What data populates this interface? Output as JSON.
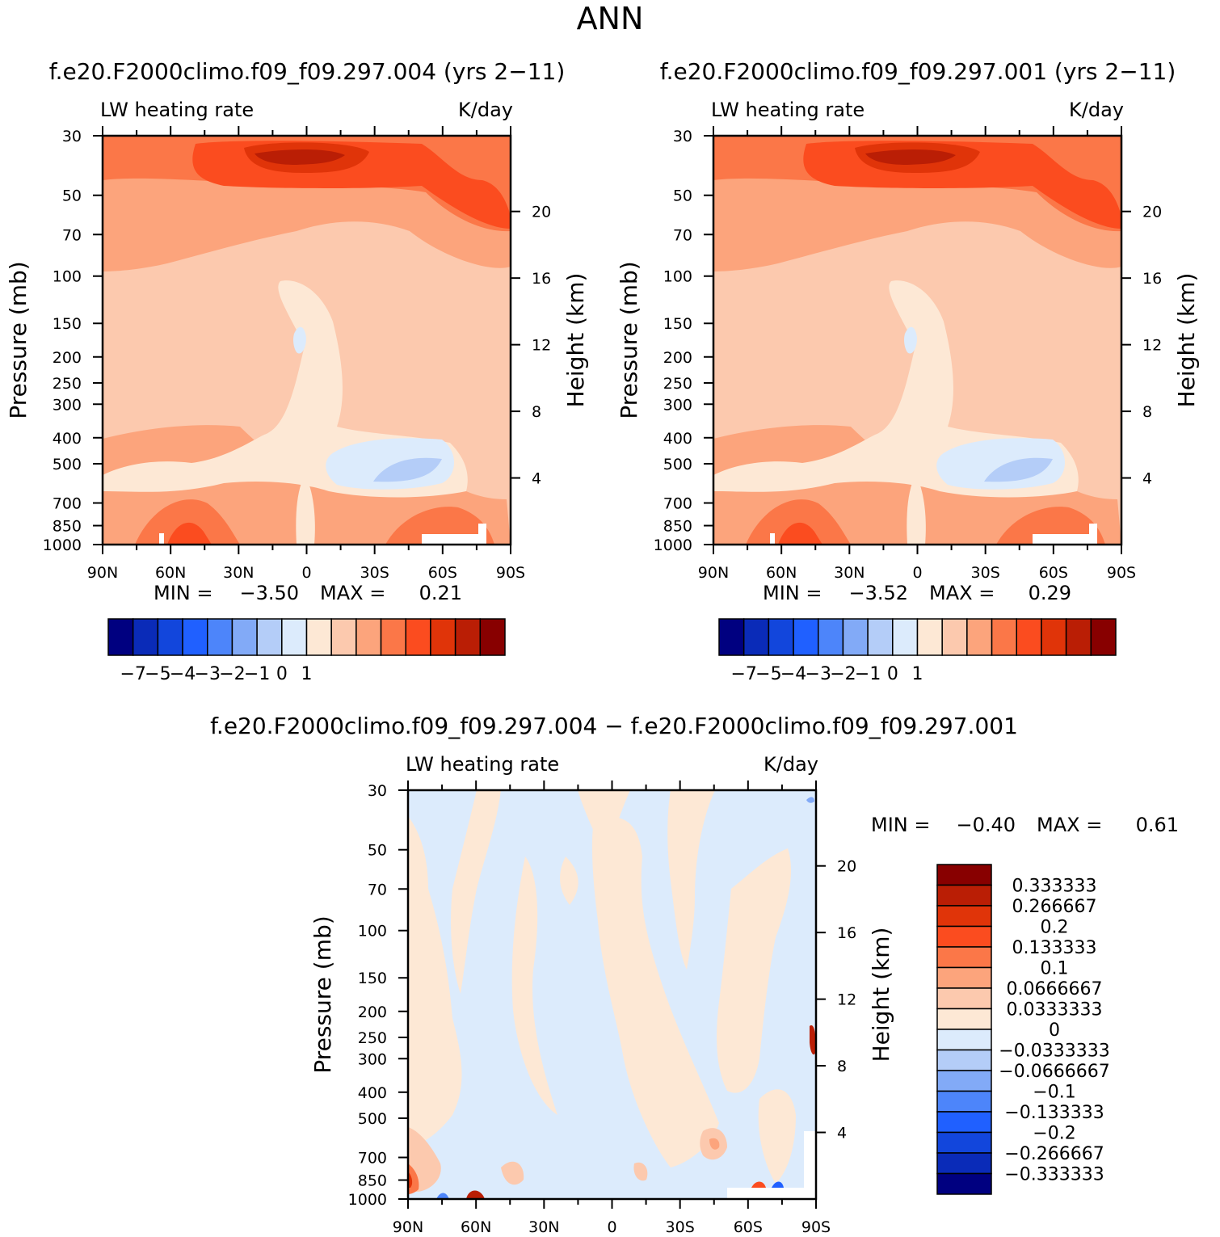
{
  "figure": {
    "title": "ANN",
    "diff_title": "f.e20.F2000climo.f09_f09.297.004 − f.e20.F2000climo.f09_f09.297.001"
  },
  "colors": {
    "abs_palette": [
      "#000080",
      "#0a2bb8",
      "#1246dc",
      "#2060ff",
      "#4d85fa",
      "#82aaf7",
      "#b4cdf8",
      "#dcebfc",
      "#fde8d5",
      "#fcc9ae",
      "#fca47c",
      "#fb7748",
      "#fb4c1f",
      "#e03409",
      "#ba1e05",
      "#880000"
    ],
    "diff_palette": [
      "#000080",
      "#0a2bb8",
      "#1246dc",
      "#2060ff",
      "#4d85fa",
      "#82aaf7",
      "#b4cdf8",
      "#dcebfc",
      "#fde8d5",
      "#fcc9ae",
      "#fca47c",
      "#fb7748",
      "#fb4c1f",
      "#e03409",
      "#ba1e05",
      "#880000"
    ]
  },
  "chart_data": [
    {
      "type": "contour",
      "title": "f.e20.F2000climo.f09_f09.297.004 (yrs 2−11)",
      "left_label": "LW heating rate",
      "right_label": "K/day",
      "xlabel": "",
      "ylabel": "Pressure (mb)",
      "y2label": "Height (km)",
      "x_ticks": [
        "90N",
        "60N",
        "30N",
        "0",
        "30S",
        "60S",
        "90S"
      ],
      "y_ticks": [
        "30",
        "50",
        "70",
        "100",
        "150",
        "200",
        "250",
        "300",
        "400",
        "500",
        "700",
        "850",
        "1000"
      ],
      "y2_ticks": [
        "20",
        "16",
        "12",
        "8",
        "4"
      ],
      "min_label": "MIN =",
      "min_value": "−3.50",
      "max_label": "MAX =",
      "max_value": "0.21",
      "colorbar_labels": [
        "−7",
        "−5",
        "−4",
        "−3",
        "−2",
        "−1",
        "0",
        "1"
      ]
    },
    {
      "type": "contour",
      "title": "f.e20.F2000climo.f09_f09.297.001 (yrs 2−11)",
      "left_label": "LW heating rate",
      "right_label": "K/day",
      "xlabel": "",
      "ylabel": "Pressure (mb)",
      "y2label": "Height (km)",
      "x_ticks": [
        "90N",
        "60N",
        "30N",
        "0",
        "30S",
        "60S",
        "90S"
      ],
      "y_ticks": [
        "30",
        "50",
        "70",
        "100",
        "150",
        "200",
        "250",
        "300",
        "400",
        "500",
        "700",
        "850",
        "1000"
      ],
      "y2_ticks": [
        "20",
        "16",
        "12",
        "8",
        "4"
      ],
      "min_label": "MIN =",
      "min_value": "−3.52",
      "max_label": "MAX =",
      "max_value": "0.29",
      "colorbar_labels": [
        "−7",
        "−5",
        "−4",
        "−3",
        "−2",
        "−1",
        "0",
        "1"
      ]
    },
    {
      "type": "contour",
      "title": "f.e20.F2000climo.f09_f09.297.004 − f.e20.F2000climo.f09_f09.297.001",
      "left_label": "LW heating rate",
      "right_label": "K/day",
      "ylabel": "Pressure (mb)",
      "y2label": "Height (km)",
      "x_ticks": [
        "90N",
        "60N",
        "30N",
        "0",
        "30S",
        "60S",
        "90S"
      ],
      "y_ticks": [
        "30",
        "50",
        "70",
        "100",
        "150",
        "200",
        "250",
        "300",
        "400",
        "500",
        "700",
        "850",
        "1000"
      ],
      "y2_ticks": [
        "20",
        "16",
        "12",
        "8",
        "4"
      ],
      "min_label": "MIN =",
      "min_value": "−0.40",
      "max_label": "MAX =",
      "max_value": "0.61",
      "colorbar_labels": [
        "0.333333",
        "0.266667",
        "0.2",
        "0.133333",
        "0.1",
        "0.0666667",
        "0.0333333",
        "0",
        "−0.0333333",
        "−0.0666667",
        "−0.1",
        "−0.133333",
        "−0.2",
        "−0.266667",
        "−0.333333"
      ]
    }
  ]
}
